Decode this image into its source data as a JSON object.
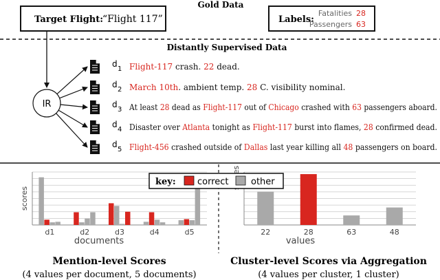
{
  "gold": {
    "title": "Gold Data",
    "target_label": "Target Flight:",
    "target_value": "“Flight 117”",
    "labels_title": "Labels:",
    "fatalities_label": "Fatalities",
    "fatalities_value": "28",
    "passengers_label": "Passengers",
    "passengers_value": "63"
  },
  "distant": {
    "title": "Distantly Supervised Data",
    "ir_label": "IR",
    "docs": [
      {
        "id": "d",
        "sub": "1",
        "parts": [
          {
            "t": "Flight-117",
            "c": "red"
          },
          {
            "t": " crash.  ",
            "c": "black"
          },
          {
            "t": "22",
            "c": "red"
          },
          {
            "t": " dead.",
            "c": "black"
          }
        ]
      },
      {
        "id": "d",
        "sub": "2",
        "parts": [
          {
            "t": "March 10th",
            "c": "red"
          },
          {
            "t": ".  ambient temp. ",
            "c": "black"
          },
          {
            "t": "28",
            "c": "red"
          },
          {
            "t": " C. visibility nominal.",
            "c": "black"
          }
        ]
      },
      {
        "id": "d",
        "sub": "3",
        "parts": [
          {
            "t": "At least ",
            "c": "black"
          },
          {
            "t": "28",
            "c": "red"
          },
          {
            "t": " dead as ",
            "c": "black"
          },
          {
            "t": "Flight-117",
            "c": "red"
          },
          {
            "t": " out of ",
            "c": "black"
          },
          {
            "t": "Chicago",
            "c": "red"
          },
          {
            "t": " crashed with ",
            "c": "black"
          },
          {
            "t": "63",
            "c": "red"
          },
          {
            "t": " passengers aboard.",
            "c": "black"
          }
        ]
      },
      {
        "id": "d",
        "sub": "4",
        "parts": [
          {
            "t": "Disaster over ",
            "c": "black"
          },
          {
            "t": "Atlanta",
            "c": "red"
          },
          {
            "t": " tonight as ",
            "c": "black"
          },
          {
            "t": "Flight-117",
            "c": "red"
          },
          {
            "t": " burst into flames, ",
            "c": "black"
          },
          {
            "t": "28",
            "c": "red"
          },
          {
            "t": " confirmed dead.",
            "c": "black"
          }
        ]
      },
      {
        "id": "d",
        "sub": "5",
        "parts": [
          {
            "t": "Flight-456",
            "c": "red"
          },
          {
            "t": " crashed outside of ",
            "c": "black"
          },
          {
            "t": "Dallas",
            "c": "red"
          },
          {
            "t": " last year killing all ",
            "c": "black"
          },
          {
            "t": "48",
            "c": "red"
          },
          {
            "t": " passengers on board.",
            "c": "black"
          }
        ]
      }
    ]
  },
  "legend": {
    "key_label": "key:",
    "correct_label": "correct",
    "other_label": "other"
  },
  "colors": {
    "correct": "#d8261f",
    "other": "#a9a9a9",
    "text_red": "#d8261f"
  },
  "chart_data": [
    {
      "type": "bar",
      "title": "Mention-level Scores",
      "subtitle": "(4 values per document, 5 documents)",
      "xlabel": "documents",
      "ylabel": "scores",
      "categories": [
        "d1",
        "d2",
        "d3",
        "d4",
        "d5"
      ],
      "ylim": [
        0,
        1
      ],
      "grid": true,
      "bars": [
        [
          {
            "v": 0.9,
            "c": "other"
          },
          {
            "v": 0.1,
            "c": "correct"
          },
          {
            "v": 0.05,
            "c": "other"
          },
          {
            "v": 0.06,
            "c": "other"
          }
        ],
        [
          {
            "v": 0.24,
            "c": "correct"
          },
          {
            "v": 0.05,
            "c": "other"
          },
          {
            "v": 0.12,
            "c": "other"
          },
          {
            "v": 0.24,
            "c": "other"
          }
        ],
        [
          {
            "v": 0.41,
            "c": "correct"
          },
          {
            "v": 0.36,
            "c": "other"
          },
          {
            "v": 0.02,
            "c": "other"
          },
          {
            "v": 0.25,
            "c": "correct"
          }
        ],
        [
          {
            "v": 0.06,
            "c": "other"
          },
          {
            "v": 0.24,
            "c": "correct"
          },
          {
            "v": 0.1,
            "c": "other"
          },
          {
            "v": 0.05,
            "c": "other"
          }
        ],
        [
          {
            "v": 0.09,
            "c": "other"
          },
          {
            "v": 0.11,
            "c": "correct"
          },
          {
            "v": 0.09,
            "c": "other"
          },
          {
            "v": 0.73,
            "c": "other"
          }
        ]
      ]
    },
    {
      "type": "bar",
      "title": "Cluster-level Scores via Aggregation",
      "subtitle": "(4 values per cluster, 1 cluster)",
      "xlabel": "values",
      "ylabel": "scores",
      "categories": [
        "22",
        "28",
        "63",
        "48"
      ],
      "values": [
        0.63,
        0.96,
        0.18,
        0.33
      ],
      "colors": [
        "other",
        "correct",
        "other",
        "other"
      ],
      "ylim": [
        0,
        1
      ],
      "grid": true
    }
  ]
}
